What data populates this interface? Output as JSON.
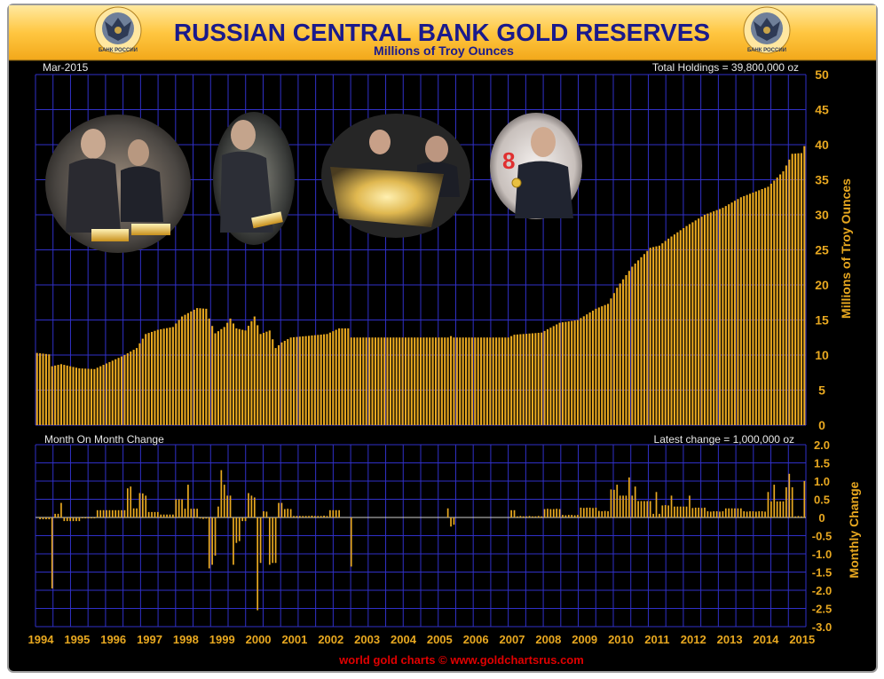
{
  "header": {
    "title": "RUSSIAN CENTRAL BANK GOLD RESERVES",
    "subtitle": "Millions of Troy Ounces",
    "emblem_text": "БАНК РОССИИ"
  },
  "footer": {
    "credit": "world gold charts © www.goldchartsrus.com"
  },
  "colors": {
    "background": "#000000",
    "grid": "#3030c8",
    "bars": "#e8a820",
    "axis_text": "#e8a820",
    "title_text": "#1a1a8c",
    "credit_text": "#e00000"
  },
  "chart_data": [
    {
      "type": "bar",
      "corner_left": "Mar-2015",
      "corner_right": "Total Holdings = 39,800,000 oz",
      "ylabel": "Millions of Troy Ounces",
      "ylim": [
        0,
        50
      ],
      "yticks": [
        0,
        5,
        10,
        15,
        20,
        25,
        30,
        35,
        40,
        45,
        50
      ],
      "grid": true,
      "x_start": "1994-01",
      "x_end": "2015-03",
      "anchors": [
        [
          "1994-01",
          10.3
        ],
        [
          "1994-05",
          10.1
        ],
        [
          "1994-06",
          8.4
        ],
        [
          "1994-09",
          8.7
        ],
        [
          "1995-03",
          8.1
        ],
        [
          "1995-08",
          8.0
        ],
        [
          "1996-01",
          9.0
        ],
        [
          "1996-06",
          10.0
        ],
        [
          "1996-10",
          11.0
        ],
        [
          "1997-01",
          13.0
        ],
        [
          "1997-05",
          13.6
        ],
        [
          "1997-10",
          14.0
        ],
        [
          "1998-01",
          15.5
        ],
        [
          "1998-06",
          16.7
        ],
        [
          "1998-09",
          16.6
        ],
        [
          "1998-10",
          15.2
        ],
        [
          "1998-12",
          13.1
        ],
        [
          "1999-03",
          14.0
        ],
        [
          "1999-05",
          15.2
        ],
        [
          "1999-07",
          13.8
        ],
        [
          "1999-10",
          13.5
        ],
        [
          "2000-01",
          15.5
        ],
        [
          "2000-03",
          13.0
        ],
        [
          "2000-06",
          13.5
        ],
        [
          "2000-08",
          11.0
        ],
        [
          "2000-10",
          11.8
        ],
        [
          "2001-01",
          12.5
        ],
        [
          "2001-06",
          12.7
        ],
        [
          "2002-01",
          13.0
        ],
        [
          "2002-05",
          13.8
        ],
        [
          "2002-08",
          13.8
        ],
        [
          "2002-09",
          12.5
        ],
        [
          "2005-05",
          12.5
        ],
        [
          "2005-06",
          12.7
        ],
        [
          "2005-07",
          12.5
        ],
        [
          "2007-01",
          12.5
        ],
        [
          "2007-03",
          12.9
        ],
        [
          "2007-12",
          13.2
        ],
        [
          "2008-06",
          14.6
        ],
        [
          "2008-12",
          15.0
        ],
        [
          "2009-06",
          16.6
        ],
        [
          "2009-10",
          17.3
        ],
        [
          "2010-01",
          19.6
        ],
        [
          "2010-06",
          22.6
        ],
        [
          "2010-12",
          25.3
        ],
        [
          "2011-03",
          25.6
        ],
        [
          "2011-06",
          26.6
        ],
        [
          "2011-12",
          28.4
        ],
        [
          "2012-06",
          30.0
        ],
        [
          "2012-12",
          31.0
        ],
        [
          "2013-06",
          32.5
        ],
        [
          "2013-12",
          33.5
        ],
        [
          "2014-03",
          34.0
        ],
        [
          "2014-08",
          36.2
        ],
        [
          "2014-11",
          38.7
        ],
        [
          "2015-02",
          38.8
        ],
        [
          "2015-03",
          39.8
        ]
      ]
    },
    {
      "type": "bar",
      "corner_left": "Month On Month Change",
      "corner_right": "Latest change = 1,000,000 oz",
      "ylabel": "Monthly Change",
      "ylim": [
        -3.0,
        2.0
      ],
      "yticks": [
        "2.0",
        "1.5",
        "1.0",
        "0.5",
        "0",
        "-0.5",
        "-1.0",
        "-1.5",
        "-2.0",
        "-2.5",
        "-3.0"
      ],
      "grid": true,
      "x_start": "1994-01",
      "x_end": "2015-03",
      "notable_changes": [
        [
          "1994-06",
          -1.95
        ],
        [
          "1994-09",
          0.4
        ],
        [
          "1996-07",
          0.8
        ],
        [
          "1996-08",
          0.85
        ],
        [
          "1997-01",
          0.6
        ],
        [
          "1998-03",
          0.9
        ],
        [
          "1998-10",
          -1.4
        ],
        [
          "1998-11",
          -1.3
        ],
        [
          "1999-02",
          1.3
        ],
        [
          "1999-03",
          0.9
        ],
        [
          "1999-06",
          -1.3
        ],
        [
          "1999-08",
          -0.65
        ],
        [
          "1999-12",
          0.6
        ],
        [
          "2000-01",
          0.55
        ],
        [
          "2000-02",
          -2.55
        ],
        [
          "2000-06",
          -1.3
        ],
        [
          "2000-07",
          -1.25
        ],
        [
          "2002-09",
          -1.35
        ],
        [
          "2005-05",
          0.25
        ],
        [
          "2005-06",
          -0.25
        ],
        [
          "2010-01",
          0.9
        ],
        [
          "2010-05",
          1.1
        ],
        [
          "2010-07",
          0.85
        ],
        [
          "2011-02",
          0.7
        ],
        [
          "2011-07",
          0.6
        ],
        [
          "2012-01",
          0.6
        ],
        [
          "2014-03",
          0.7
        ],
        [
          "2014-05",
          0.9
        ],
        [
          "2014-10",
          1.2
        ],
        [
          "2015-03",
          1.0
        ]
      ]
    }
  ],
  "x_axis": {
    "labels": [
      "1994",
      "1995",
      "1996",
      "1997",
      "1998",
      "1999",
      "2000",
      "2001",
      "2002",
      "2003",
      "2004",
      "2005",
      "2006",
      "2007",
      "2008",
      "2009",
      "2010",
      "2011",
      "2012",
      "2013",
      "2014",
      "2015"
    ]
  },
  "photos": [
    {
      "name": "putin-gold-bars-photo"
    },
    {
      "name": "putin-holding-gold-photo"
    },
    {
      "name": "officials-gold-bar-photo"
    },
    {
      "name": "medvedev-gold-coin-photo"
    }
  ]
}
